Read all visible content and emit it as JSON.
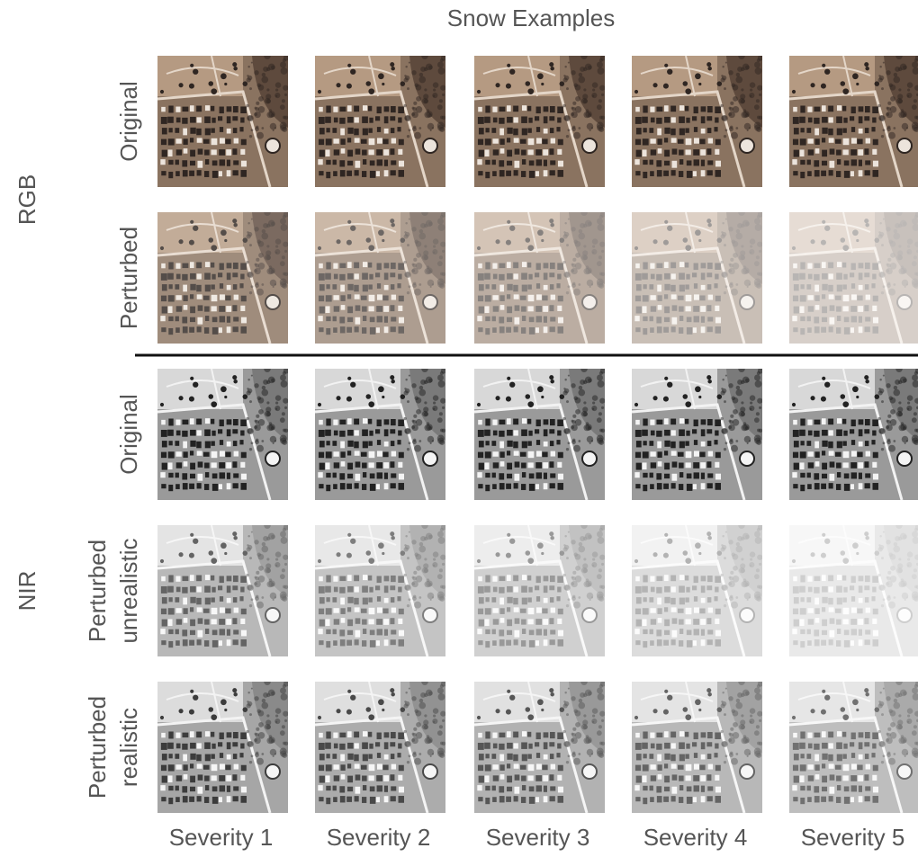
{
  "title": "Snow Examples",
  "groups": [
    {
      "label": "RGB",
      "rows": [
        {
          "lines": [
            "Original"
          ]
        },
        {
          "lines": [
            "Perturbed"
          ]
        }
      ]
    },
    {
      "label": "NIR",
      "rows": [
        {
          "lines": [
            "Original"
          ]
        },
        {
          "lines": [
            "Perturbed",
            "unrealistic"
          ]
        },
        {
          "lines": [
            "Perturbed",
            "realistic"
          ]
        }
      ]
    }
  ],
  "columns": [
    "Severity 1",
    "Severity 2",
    "Severity 3",
    "Severity 4",
    "Severity 5"
  ]
}
